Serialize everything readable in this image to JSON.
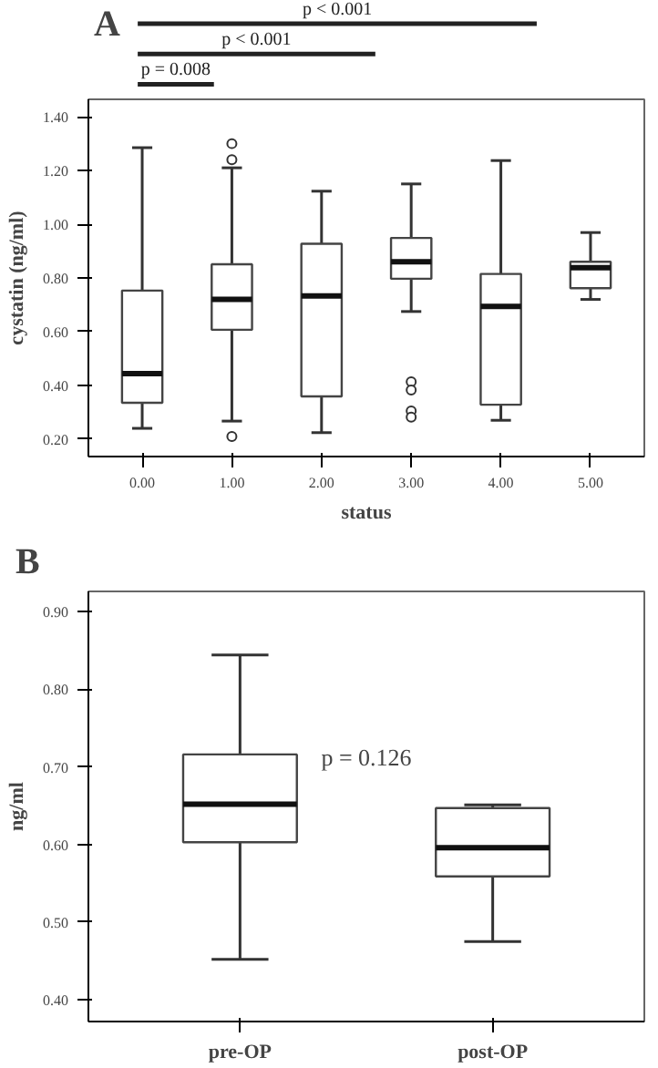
{
  "chart_data": [
    {
      "type": "box",
      "title": "A",
      "xlabel": "status",
      "ylabel": "cystatin (ng/ml)",
      "categories": [
        "0.00",
        "1.00",
        "2.00",
        "3.00",
        "4.00",
        "5.00"
      ],
      "boxes": [
        {
          "low": 0.24,
          "q1": 0.335,
          "median": 0.444,
          "q3": 0.753,
          "high": 1.285
        },
        {
          "low": 0.267,
          "q1": 0.607,
          "median": 0.72,
          "q3": 0.851,
          "high": 1.21,
          "outliers": [
            1.24,
            1.3,
            0.21
          ]
        },
        {
          "low": 0.224,
          "q1": 0.359,
          "median": 0.733,
          "q3": 0.927,
          "high": 1.123
        },
        {
          "low": 0.675,
          "q1": 0.797,
          "median": 0.86,
          "q3": 0.949,
          "high": 1.15,
          "outliers": [
            0.413,
            0.383,
            0.305,
            0.282
          ]
        },
        {
          "low": 0.27,
          "q1": 0.328,
          "median": 0.694,
          "q3": 0.815,
          "high": 1.237
        },
        {
          "low": 0.72,
          "q1": 0.762,
          "median": 0.838,
          "q3": 0.86,
          "high": 0.969
        }
      ],
      "ylim": [
        0.135,
        1.465
      ],
      "yticks": [
        {
          "value": 0.2,
          "label": "0.20"
        },
        {
          "value": 0.4,
          "label": "0.40"
        },
        {
          "value": 0.6,
          "label": "0.60"
        },
        {
          "value": 0.8,
          "label": "0.80"
        },
        {
          "value": 1.0,
          "label": "1.00"
        },
        {
          "value": 1.2,
          "label": "1.20"
        },
        {
          "value": 1.4,
          "label": "1.40"
        }
      ],
      "annotations": [
        "p = 0.008",
        "p < 0.001",
        "p < 0.001"
      ],
      "grid": false
    },
    {
      "type": "box",
      "title": "B",
      "ylabel": "ng/ml",
      "categories": [
        "pre-OP",
        "post-OP"
      ],
      "boxes": [
        {
          "low": 0.452,
          "q1": 0.603,
          "median": 0.652,
          "q3": 0.716,
          "high": 0.844
        },
        {
          "low": 0.475,
          "q1": 0.559,
          "median": 0.596,
          "q3": 0.647,
          "high": 0.651
        }
      ],
      "ylim": [
        0.372,
        0.926
      ],
      "yticks": [
        {
          "value": 0.4,
          "label": "0.40"
        },
        {
          "value": 0.5,
          "label": "0.50"
        },
        {
          "value": 0.6,
          "label": "0.60"
        },
        {
          "value": 0.7,
          "label": "0.70"
        },
        {
          "value": 0.8,
          "label": "0.80"
        },
        {
          "value": 0.9,
          "label": "0.90"
        }
      ],
      "annotations": [
        "p = 0.126"
      ],
      "grid": false
    }
  ]
}
